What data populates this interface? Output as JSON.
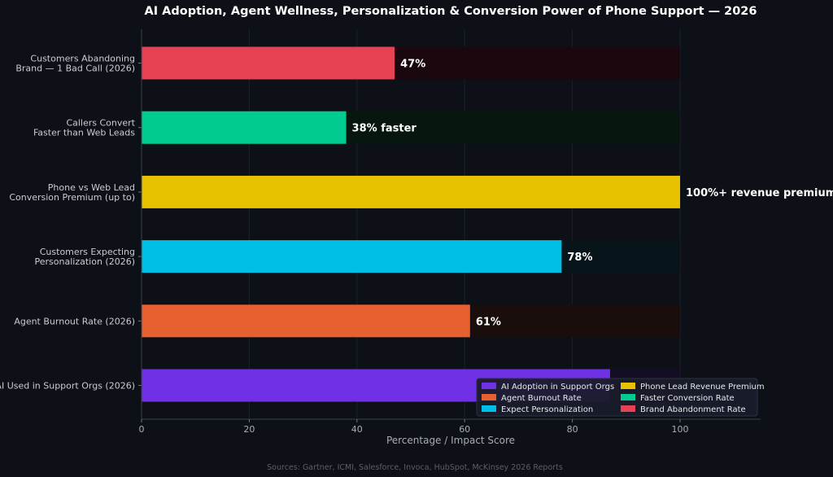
{
  "chart_data": {
    "type": "bar",
    "orientation": "horizontal",
    "title": "AI Adoption, Agent Wellness, Personalization & Conversion Power of Phone Support — 2026",
    "xlabel": "Percentage / Impact Score",
    "ylabel": "",
    "xlim": [
      0,
      115
    ],
    "xticks": [
      0,
      20,
      40,
      60,
      80,
      100
    ],
    "grid": "vertical, faint",
    "legend_position": "bottom-right",
    "legend_columns": 2,
    "source_note": "Sources: Gartner, ICMI, Salesforce, Invoca, HubSpot, McKinsey 2026 Reports",
    "bars": [
      {
        "category": "Customers Abandoning\nBrand — 1 Bad Call (2026)",
        "value": 47,
        "label": "47%",
        "color": "#e64253",
        "track_color": "#1a080e"
      },
      {
        "category": "Callers Convert\nFaster than Web Leads",
        "value": 38,
        "label": "38% faster",
        "color": "#00cc90",
        "track_color": "#07160f"
      },
      {
        "category": "Phone vs Web Lead\nConversion Premium (up to)",
        "value": 100,
        "label": "100%+ revenue premium",
        "color": "#e8c100",
        "track_color": "#17140a"
      },
      {
        "category": "Customers Expecting\nPersonalization (2026)",
        "value": 78,
        "label": "78%",
        "color": "#00bfe6",
        "track_color": "#07141a"
      },
      {
        "category": "Agent Burnout Rate (2026)",
        "value": 61,
        "label": "61%",
        "color": "#e66030",
        "track_color": "#190e0c"
      },
      {
        "category": "AI Used in Support Orgs (2026)",
        "value": 87,
        "label": "",
        "color": "#7030e6",
        "track_color": "#150d24"
      }
    ],
    "legend": [
      {
        "name": "AI Adoption in Support Orgs",
        "color": "#7030e6"
      },
      {
        "name": "Agent Burnout Rate",
        "color": "#e66030"
      },
      {
        "name": "Expect Personalization",
        "color": "#00bfe6"
      },
      {
        "name": "Phone Lead Revenue Premium",
        "color": "#e8c100"
      },
      {
        "name": "Faster Conversion Rate",
        "color": "#00cc90"
      },
      {
        "name": "Brand Abandonment Rate",
        "color": "#e64253"
      }
    ]
  }
}
